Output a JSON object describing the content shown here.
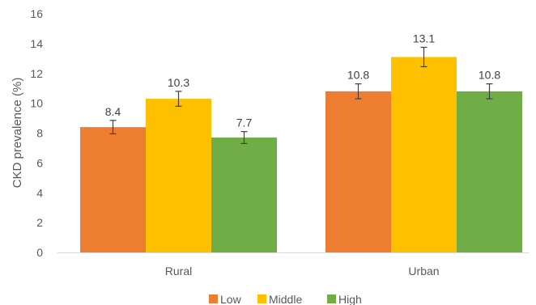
{
  "chart_data": {
    "type": "bar",
    "title": "",
    "xlabel": "",
    "ylabel": "CKD prevalence (%)",
    "ylim": [
      0,
      16
    ],
    "yticks": [
      0,
      2,
      4,
      6,
      8,
      10,
      12,
      14,
      16
    ],
    "grid": false,
    "legend_position": "bottom",
    "categories": [
      "Rural",
      "Urban"
    ],
    "series": [
      {
        "name": "Low",
        "color": "#ED7D31",
        "values": [
          8.4,
          10.8
        ],
        "labels": [
          "8.4",
          "10.8"
        ],
        "error": [
          0.45,
          0.5
        ]
      },
      {
        "name": "Middle",
        "color": "#FFC000",
        "values": [
          10.3,
          13.1
        ],
        "labels": [
          "10.3",
          "13.1"
        ],
        "error": [
          0.5,
          0.65
        ]
      },
      {
        "name": "High",
        "color": "#70AD47",
        "values": [
          7.7,
          10.8
        ],
        "labels": [
          "7.7",
          "10.8"
        ],
        "error": [
          0.4,
          0.5
        ]
      }
    ]
  }
}
